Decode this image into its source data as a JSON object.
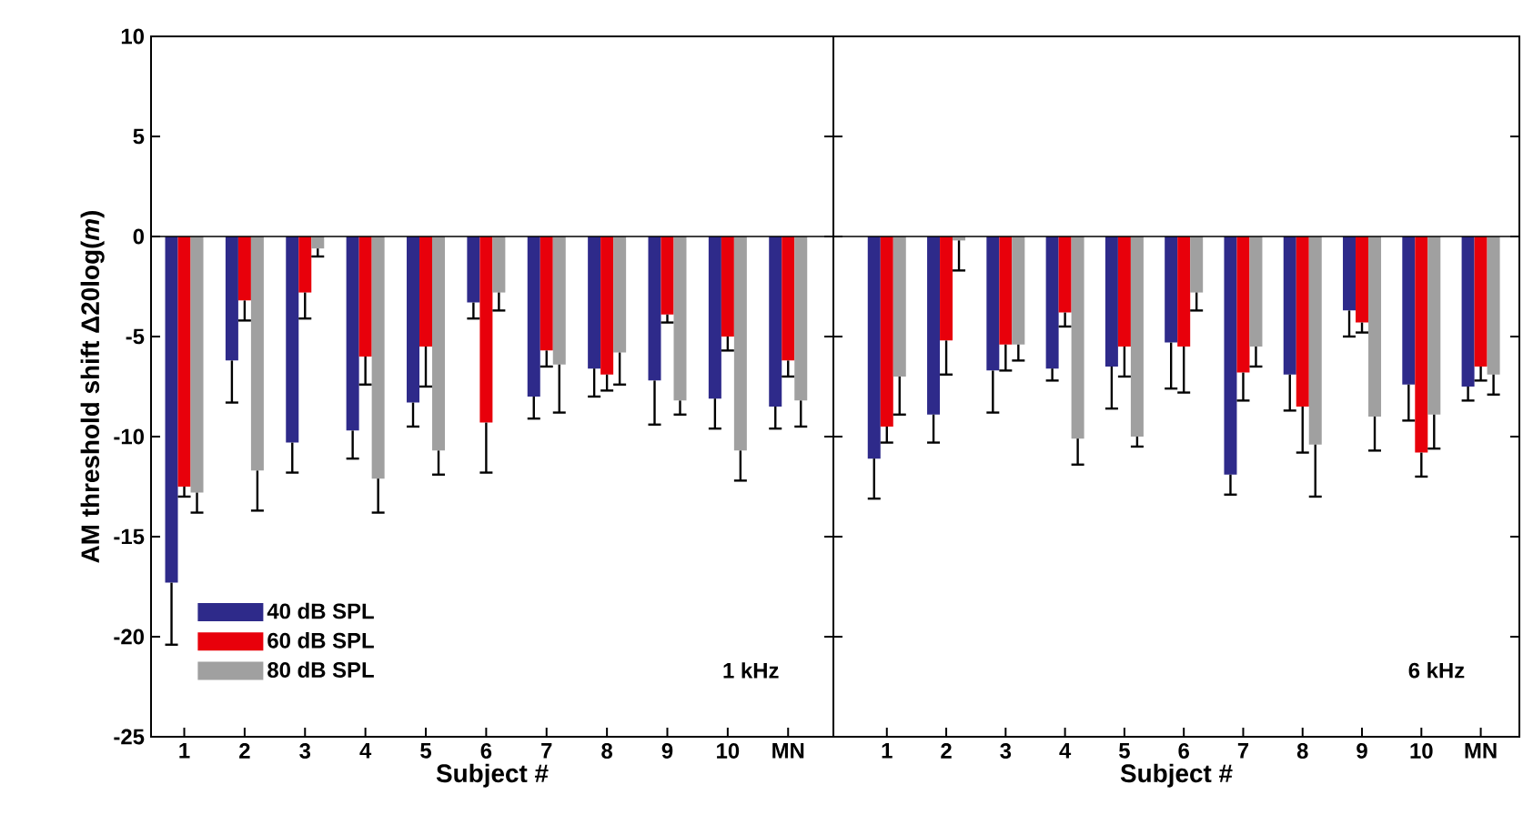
{
  "chart_data": [
    {
      "type": "bar",
      "categories": [
        "1",
        "2",
        "3",
        "4",
        "5",
        "6",
        "7",
        "8",
        "9",
        "10",
        "MN"
      ],
      "xlabel": "Subject #",
      "ylabel": "AM threshold shift Δ20log(*m*)",
      "ylim": [
        -25,
        10
      ],
      "yticks": [
        -25,
        -20,
        -15,
        -10,
        -5,
        0,
        5,
        10
      ],
      "legend": "bottom left",
      "annotations": [
        "1 kHz"
      ],
      "ref_lines": [
        {
          "axis": "y",
          "value": 0
        }
      ],
      "series": [
        {
          "name": "40 dB SPL",
          "color": "#2e2a8a",
          "values": [
            -17.3,
            -6.2,
            -10.3,
            -9.7,
            -8.3,
            -3.3,
            -8.0,
            -6.6,
            -7.2,
            -8.1,
            -8.5
          ],
          "errors": [
            [
              -20.4,
              -17.3
            ],
            [
              -8.3,
              -6.2
            ],
            [
              -11.8,
              -10.3
            ],
            [
              -11.1,
              -9.7
            ],
            [
              -9.5,
              -8.3
            ],
            [
              -4.1,
              -3.3
            ],
            [
              -9.1,
              -8.0
            ],
            [
              -8.0,
              -6.6
            ],
            [
              -9.4,
              -7.2
            ],
            [
              -9.6,
              -8.1
            ],
            [
              -9.6,
              -8.5
            ]
          ]
        },
        {
          "name": "60 dB SPL",
          "color": "#e8000b",
          "values": [
            -12.5,
            -3.2,
            -2.8,
            -6.0,
            -5.5,
            -9.3,
            -5.7,
            -6.9,
            -3.9,
            -5.0,
            -6.2
          ],
          "errors": [
            [
              -13.0,
              -12.5
            ],
            [
              -4.2,
              -3.2
            ],
            [
              -4.1,
              -2.8
            ],
            [
              -7.4,
              -6.0
            ],
            [
              -7.5,
              -5.5
            ],
            [
              -11.8,
              -9.3
            ],
            [
              -6.5,
              -5.7
            ],
            [
              -7.7,
              -6.9
            ],
            [
              -4.3,
              -3.9
            ],
            [
              -5.7,
              -5.0
            ],
            [
              -7.0,
              -6.2
            ]
          ]
        },
        {
          "name": "80 dB SPL",
          "color": "#a0a0a0",
          "values": [
            -12.8,
            -11.7,
            -0.6,
            -12.1,
            -10.7,
            -2.8,
            -6.4,
            -5.8,
            -8.2,
            -10.7,
            -8.2
          ],
          "errors": [
            [
              -13.8,
              -12.8
            ],
            [
              -13.7,
              -11.7
            ],
            [
              -1.0,
              -0.6
            ],
            [
              -13.8,
              -12.1
            ],
            [
              -11.9,
              -10.7
            ],
            [
              -3.7,
              -2.8
            ],
            [
              -8.8,
              -6.4
            ],
            [
              -7.4,
              -5.8
            ],
            [
              -8.9,
              -8.2
            ],
            [
              -12.2,
              -10.7
            ],
            [
              -9.5,
              -8.2
            ]
          ]
        }
      ]
    },
    {
      "type": "bar",
      "categories": [
        "1",
        "2",
        "3",
        "4",
        "5",
        "6",
        "7",
        "8",
        "9",
        "10",
        "MN"
      ],
      "xlabel": "Subject #",
      "ylim": [
        -25,
        10
      ],
      "yticks": [
        -25,
        -20,
        -15,
        -10,
        -5,
        0,
        5,
        10
      ],
      "tick_labels": "x",
      "annotations": [
        "6 kHz"
      ],
      "ref_lines": [
        {
          "axis": "y",
          "value": 0
        }
      ],
      "series": [
        {
          "color": "#2e2a8a",
          "values": [
            -11.1,
            -8.9,
            -6.7,
            -6.6,
            -6.5,
            -5.3,
            -11.9,
            -6.9,
            -3.7,
            -7.4,
            -7.5
          ],
          "errors": [
            [
              -13.1,
              -11.1
            ],
            [
              -10.3,
              -8.9
            ],
            [
              -8.8,
              -6.7
            ],
            [
              -7.2,
              -6.6
            ],
            [
              -8.6,
              -6.5
            ],
            [
              -7.6,
              -5.3
            ],
            [
              -12.9,
              -11.9
            ],
            [
              -8.7,
              -6.9
            ],
            [
              -5.0,
              -3.7
            ],
            [
              -9.2,
              -7.4
            ],
            [
              -8.2,
              -7.5
            ]
          ]
        },
        {
          "color": "#e8000b",
          "values": [
            -9.5,
            -5.2,
            -5.4,
            -3.8,
            -5.5,
            -5.5,
            -6.8,
            -8.5,
            -4.3,
            -10.8,
            -6.5
          ],
          "errors": [
            [
              -10.3,
              -9.5
            ],
            [
              -6.9,
              -5.2
            ],
            [
              -6.7,
              -5.4
            ],
            [
              -4.5,
              -3.8
            ],
            [
              -7.0,
              -5.5
            ],
            [
              -7.8,
              -5.5
            ],
            [
              -8.2,
              -6.8
            ],
            [
              -10.8,
              -8.5
            ],
            [
              -4.8,
              -4.3
            ],
            [
              -12.0,
              -10.8
            ],
            [
              -7.2,
              -6.5
            ]
          ]
        },
        {
          "color": "#a0a0a0",
          "values": [
            -7.0,
            -0.2,
            -5.4,
            -10.1,
            -10.0,
            -2.8,
            -5.5,
            -10.4,
            -9.0,
            -8.9,
            -6.9
          ],
          "errors": [
            [
              -8.9,
              -7.0
            ],
            [
              -1.7,
              -0.2
            ],
            [
              -6.2,
              -5.4
            ],
            [
              -11.4,
              -10.1
            ],
            [
              -10.5,
              -10.0
            ],
            [
              -3.7,
              -2.8
            ],
            [
              -6.5,
              -5.5
            ],
            [
              -13.0,
              -10.4
            ],
            [
              -10.7,
              -9.0
            ],
            [
              -10.6,
              -8.9
            ],
            [
              -7.9,
              -6.9
            ]
          ]
        }
      ]
    }
  ]
}
